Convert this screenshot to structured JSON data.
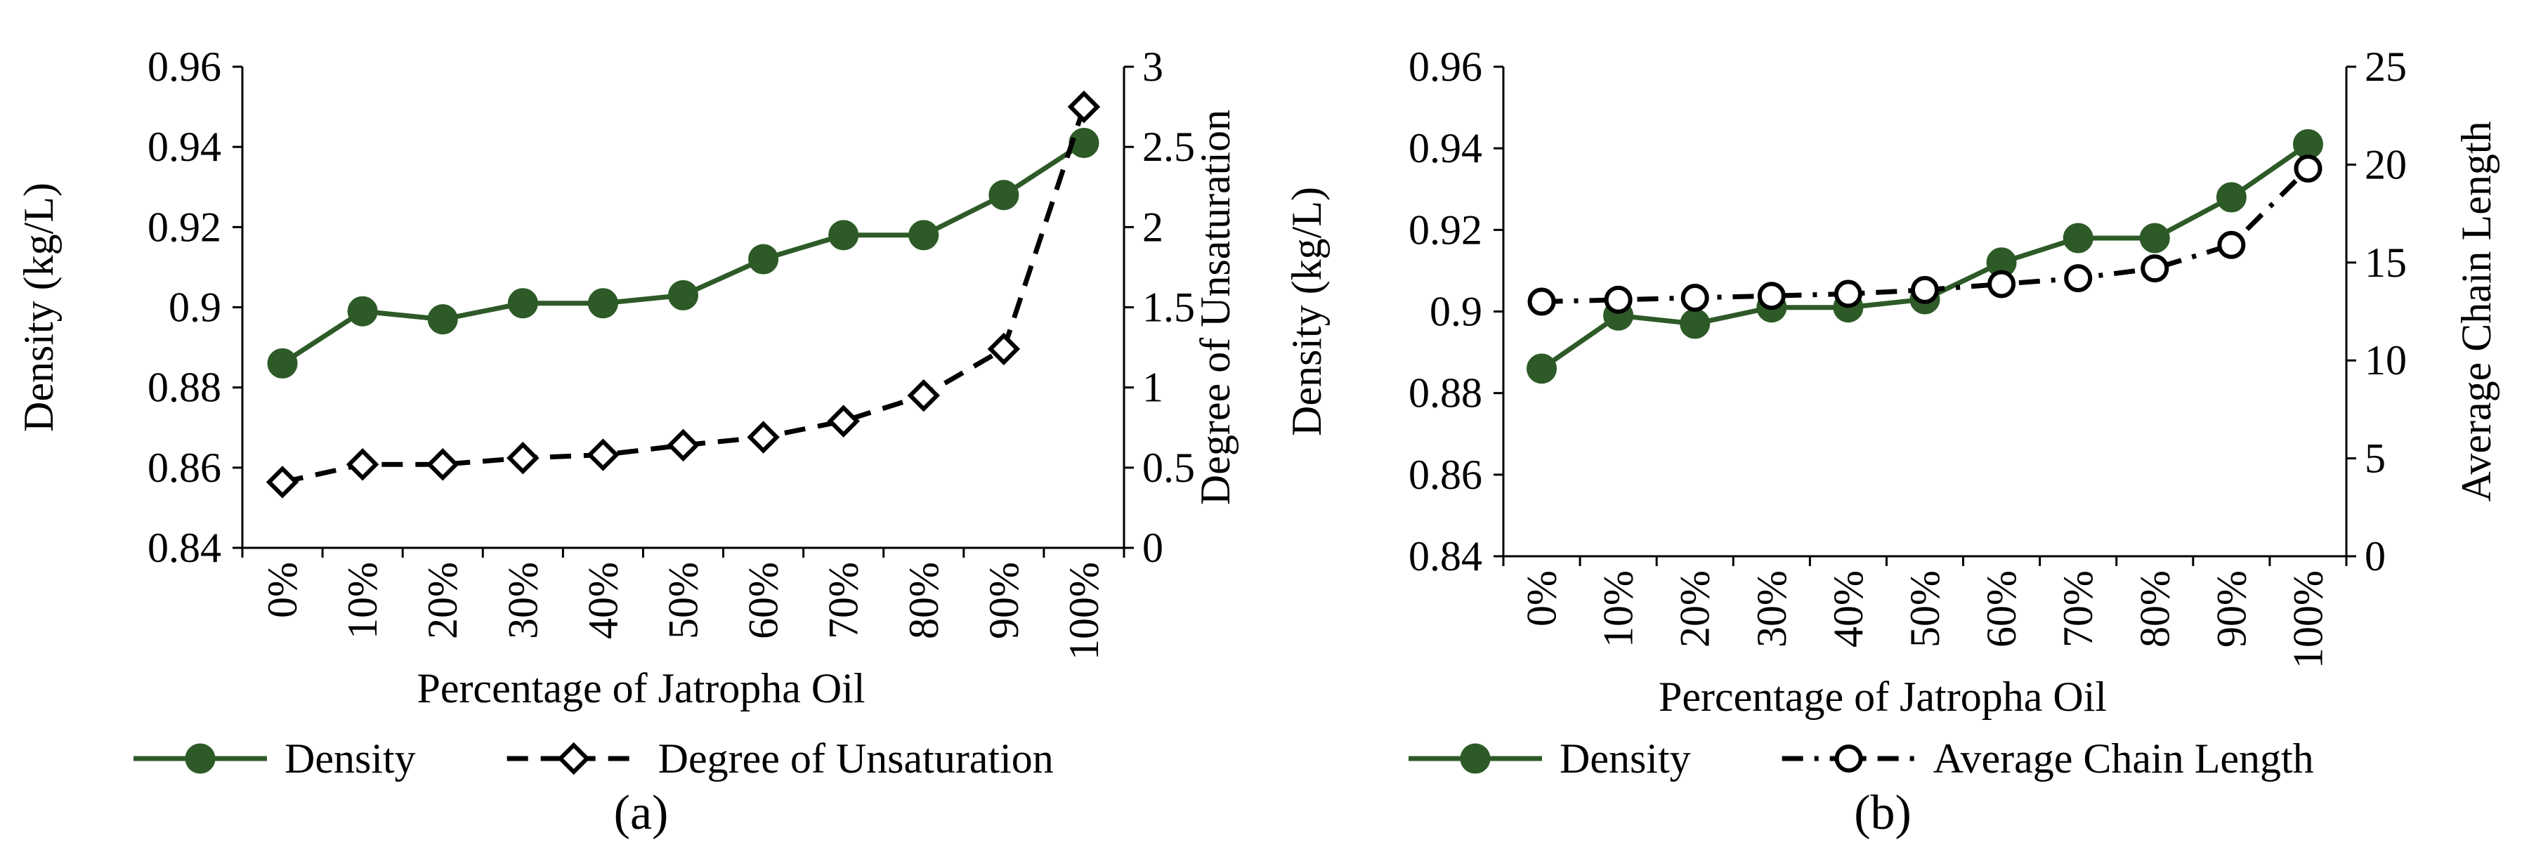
{
  "chart_data": [
    {
      "type": "line",
      "panel_label": "(a)",
      "categories": [
        "0%",
        "10%",
        "20%",
        "30%",
        "40%",
        "50%",
        "60%",
        "70%",
        "80%",
        "90%",
        "100%"
      ],
      "xlabel": "Percentage of Jatropha Oil",
      "ylabel": "Density (kg/L)",
      "y2label": "Degree of Unsaturation",
      "ylim": [
        0.84,
        0.96
      ],
      "yticks": [
        "0.84",
        "0.86",
        "0.88",
        "0.9",
        "0.92",
        "0.94",
        "0.96"
      ],
      "y2lim": [
        0,
        3
      ],
      "y2ticks": [
        "0",
        "0.5",
        "1",
        "1.5",
        "2",
        "2.5",
        "3"
      ],
      "legend_position": "bottom",
      "series": [
        {
          "name": "Density",
          "axis": "left",
          "color": "#2d5a27",
          "line_style": "solid",
          "marker": "filled-circle",
          "values": [
            0.886,
            0.899,
            0.897,
            0.901,
            0.901,
            0.903,
            0.912,
            0.918,
            0.918,
            0.928,
            0.941
          ]
        },
        {
          "name": "Degree of Unsaturation",
          "axis": "right",
          "color": "#000000",
          "line_style": "dashed",
          "marker": "open-diamond",
          "values": [
            0.41,
            0.52,
            0.52,
            0.56,
            0.58,
            0.64,
            0.69,
            0.79,
            0.95,
            1.24,
            2.75
          ]
        }
      ]
    },
    {
      "type": "line",
      "panel_label": "(b)",
      "categories": [
        "0%",
        "10%",
        "20%",
        "30%",
        "40%",
        "50%",
        "60%",
        "70%",
        "80%",
        "90%",
        "100%"
      ],
      "xlabel": "Percentage of Jatropha Oil",
      "ylabel": "Density (kg/L)",
      "y2label": "Average Chain Length",
      "ylim": [
        0.84,
        0.96
      ],
      "yticks": [
        "0.84",
        "0.86",
        "0.88",
        "0.9",
        "0.92",
        "0.94",
        "0.96"
      ],
      "y2lim": [
        0,
        25
      ],
      "y2ticks": [
        "0",
        "5",
        "10",
        "15",
        "20",
        "25"
      ],
      "legend_position": "bottom",
      "series": [
        {
          "name": "Density",
          "axis": "left",
          "color": "#2d5a27",
          "line_style": "solid",
          "marker": "filled-circle",
          "values": [
            0.886,
            0.899,
            0.897,
            0.901,
            0.901,
            0.903,
            0.912,
            0.918,
            0.918,
            0.928,
            0.941
          ]
        },
        {
          "name": "Average Chain Length",
          "axis": "right",
          "color": "#000000",
          "line_style": "dash-dot",
          "marker": "open-circle",
          "values": [
            13.0,
            13.1,
            13.2,
            13.3,
            13.4,
            13.6,
            13.9,
            14.2,
            14.7,
            15.9,
            19.8
          ]
        }
      ]
    }
  ]
}
